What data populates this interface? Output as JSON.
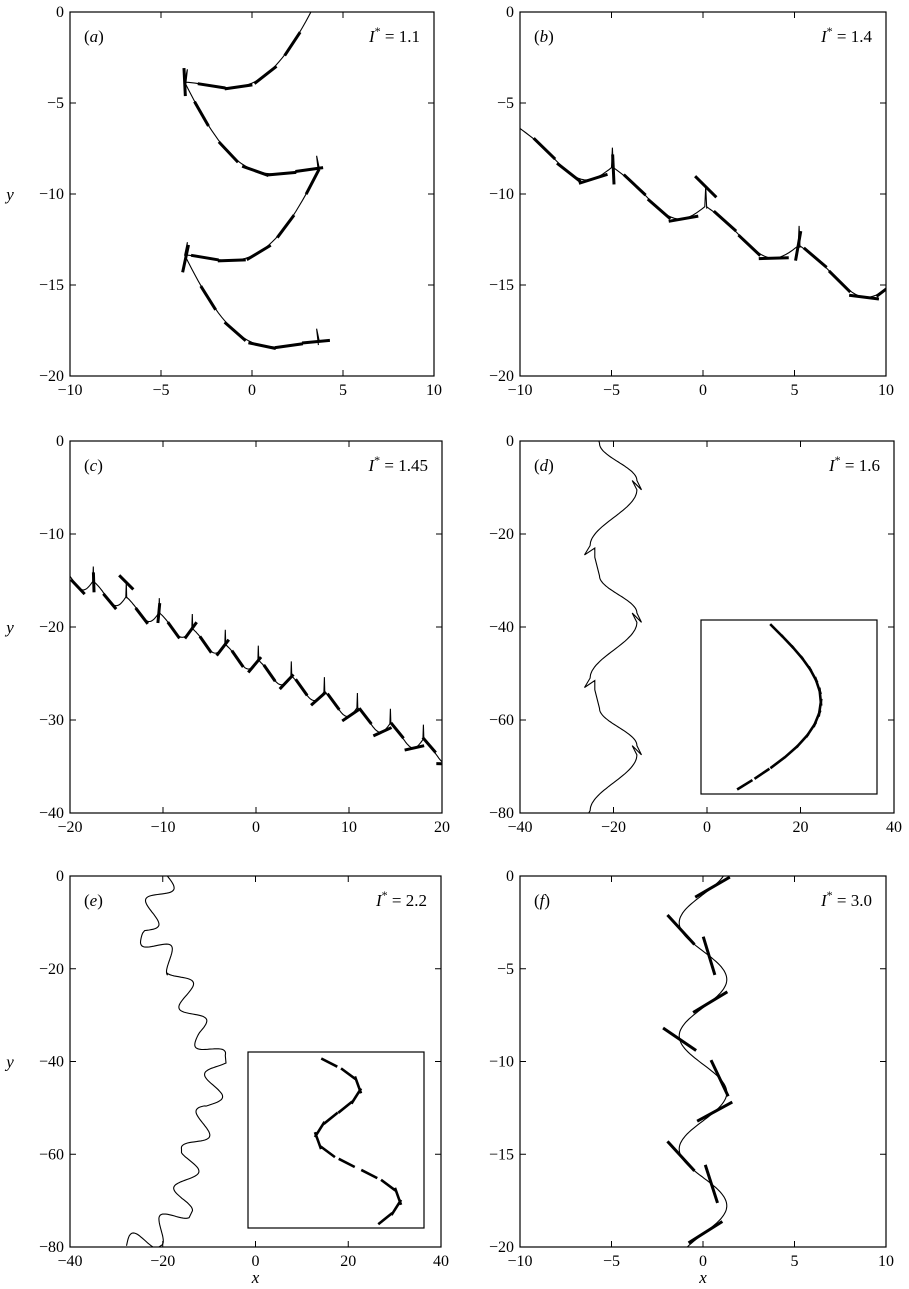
{
  "chart_data": [
    {
      "id": "a",
      "type": "line",
      "panel_label": "(a)",
      "annotation": {
        "symbol": "I",
        "sup": "*",
        "eq": " = 1.1"
      },
      "xlim": [
        -10,
        10
      ],
      "ylim": [
        -20,
        0
      ],
      "xticks": [
        -10,
        -5,
        0,
        5,
        10
      ],
      "yticks": [
        0,
        -5,
        -10,
        -15,
        -20
      ],
      "xtick_labels": [
        "−10",
        "−5",
        "0",
        "5",
        "10"
      ],
      "ytick_labels": [
        "0",
        "−5",
        "−10",
        "−15",
        "−20"
      ],
      "xlabel": "",
      "ylabel": "y",
      "trajectory": "arcs",
      "period": 4.75,
      "amplitude": 3.7,
      "start_y": 0.9,
      "sag": 4.4,
      "cusp_drop": 0.7,
      "segment_length": 1.4,
      "segments_per_arc": 6
    },
    {
      "id": "b",
      "type": "line",
      "panel_label": "(b)",
      "annotation": {
        "symbol": "I",
        "sup": "*",
        "eq": " = 1.4"
      },
      "xlim": [
        -10,
        10
      ],
      "ylim": [
        -20,
        0
      ],
      "xticks": [
        -10,
        -5,
        0,
        5,
        10
      ],
      "yticks": [
        0,
        -5,
        -10,
        -15,
        -20
      ],
      "xtick_labels": [
        "−10",
        "−5",
        "0",
        "5",
        "10"
      ],
      "ytick_labels": [
        "0",
        "−5",
        "−10",
        "−15",
        "−20"
      ],
      "xlabel": "",
      "ylabel": "",
      "trajectory": "cusps",
      "x0": -10,
      "y0": -6.4,
      "span": 5,
      "dy": 2.15,
      "dip": 1.2,
      "cusp": 1.1,
      "count": 4,
      "segment_length": 1.4,
      "segments_per_arc": 4
    },
    {
      "id": "c",
      "type": "line",
      "panel_label": "(c)",
      "annotation": {
        "symbol": "I",
        "sup": "*",
        "eq": " = 1.45"
      },
      "xlim": [
        -20,
        20
      ],
      "ylim": [
        -40,
        0
      ],
      "xticks": [
        -20,
        -10,
        0,
        10,
        20
      ],
      "yticks": [
        0,
        -10,
        -20,
        -30,
        -40
      ],
      "xtick_labels": [
        "−20",
        "−10",
        "0",
        "10",
        "20"
      ],
      "ytick_labels": [
        "0",
        "−10",
        "−20",
        "−30",
        "−40"
      ],
      "xlabel": "",
      "ylabel": "y",
      "trajectory": "cusps",
      "x0": -21,
      "y0": -13.4,
      "span": 3.45,
      "dy": 1.7,
      "dip": 1.3,
      "cusp": 1.6,
      "count": 12,
      "segment_length": 2.4,
      "segments_per_arc": 2
    },
    {
      "id": "d",
      "type": "line",
      "panel_label": "(d)",
      "annotation": {
        "symbol": "I",
        "sup": "*",
        "eq": " = 1.6"
      },
      "xlim": [
        -40,
        40
      ],
      "ylim": [
        -80,
        0
      ],
      "xticks": [
        -40,
        -20,
        0,
        20,
        40
      ],
      "yticks": [
        0,
        -20,
        -40,
        -60,
        -80
      ],
      "xtick_labels": [
        "−40",
        "−20",
        "0",
        "20",
        "40"
      ],
      "ytick_labels": [
        "0",
        "−20",
        "−40",
        "−60",
        "−80"
      ],
      "xlabel": "",
      "ylabel": "",
      "trajectory": "hooks",
      "x_left": -25,
      "x_right": -15,
      "period": 28.5,
      "y0": 3.5,
      "count": 3,
      "inset": {
        "xlim": [
          -2,
          36
        ],
        "ylim": [
          -77,
          -39
        ]
      }
    },
    {
      "id": "e",
      "type": "line",
      "panel_label": "(e)",
      "annotation": {
        "symbol": "I",
        "sup": "*",
        "eq": " = 2.2"
      },
      "xlim": [
        -40,
        40
      ],
      "ylim": [
        -80,
        0
      ],
      "xticks": [
        -40,
        -20,
        0,
        20,
        40
      ],
      "yticks": [
        0,
        -20,
        -40,
        -60,
        -80
      ],
      "xtick_labels": [
        "−40",
        "−20",
        "0",
        "20",
        "40"
      ],
      "ytick_labels": [
        "0",
        "−20",
        "−40",
        "−60",
        "−80"
      ],
      "xlabel": "x",
      "ylabel": "y",
      "trajectory": "wiggle",
      "path": [
        [
          -19,
          0
        ],
        [
          -24,
          -12
        ],
        [
          -17,
          -20
        ],
        [
          -12,
          -34
        ],
        [
          -8,
          -40
        ],
        [
          -10,
          -50
        ],
        [
          -14,
          -60
        ],
        [
          -16,
          -72
        ],
        [
          -22,
          -78
        ],
        [
          -28,
          -80
        ]
      ],
      "wiggle_amplitude": 2.4,
      "wiggle_period": 8.5,
      "inset": {
        "xlim": [
          -2,
          36
        ],
        "ylim": [
          -77,
          -39
        ]
      }
    },
    {
      "id": "f",
      "type": "line",
      "panel_label": "(f)",
      "annotation": {
        "symbol": "I",
        "sup": "*",
        "eq": " = 3.0"
      },
      "xlim": [
        -10,
        10
      ],
      "ylim": [
        -20,
        0
      ],
      "xticks": [
        -10,
        -5,
        0,
        5,
        10
      ],
      "yticks": [
        0,
        -5,
        -10,
        -15,
        -20
      ],
      "xtick_labels": [
        "−10",
        "−5",
        "0",
        "5",
        "10"
      ],
      "ytick_labels": [
        "0",
        "−5",
        "−10",
        "−15",
        "−20"
      ],
      "xlabel": "x",
      "ylabel": "",
      "trajectory": "sine",
      "amplitude": 1.3,
      "period": 6.1,
      "phase_y": -1.0,
      "segments_y": [
        -0.6,
        -2.9,
        -4.3,
        -6.8,
        -8.8,
        -10.9,
        -12.7,
        -15.1,
        -16.6,
        -19.2
      ],
      "segment_length": 2.2
    }
  ]
}
